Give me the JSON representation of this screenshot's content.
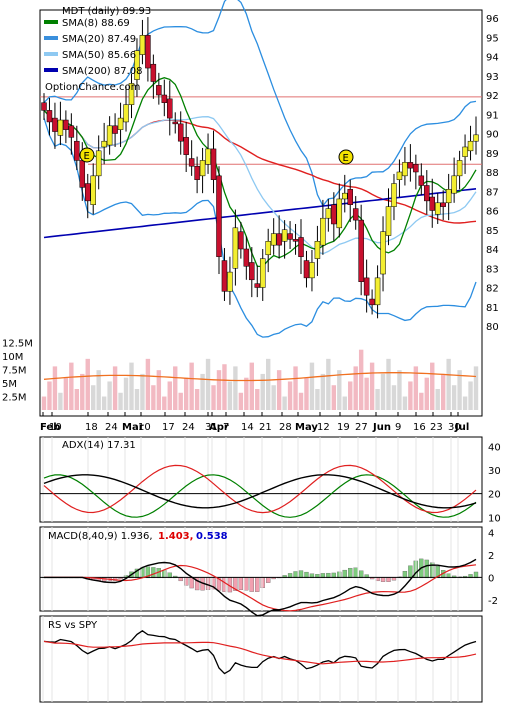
{
  "chart_data": [
    {
      "type": "candlestick",
      "title": "MDT (daily) 89.93",
      "watermark": "OptionChance.com",
      "ylim": [
        79,
        96.5
      ],
      "yticks": [
        80,
        81,
        82,
        83,
        84,
        85,
        86,
        87,
        88,
        89,
        90,
        91,
        92,
        93,
        94,
        95,
        96
      ],
      "xtick_labels": [
        "Feb",
        "10",
        "18",
        "24",
        "Mar",
        "10",
        "17",
        "24",
        "31",
        "Apr",
        "7",
        "14",
        "21",
        "28",
        "May",
        "12",
        "19",
        "27",
        "Jun",
        "9",
        "16",
        "23",
        "30",
        "Jul"
      ],
      "legend": [
        {
          "label": "SMA(8) 88.69",
          "color": "#008000"
        },
        {
          "label": "SMA(20) 87.49",
          "color": "#3a8fdc"
        },
        {
          "label": "SMA(50) 85.66",
          "color": "#8ec9f2"
        },
        {
          "label": "SMA(200) 87.08",
          "color": "#0000b0"
        }
      ],
      "earnings_markers": [
        {
          "date": "Feb 18",
          "label": "E"
        },
        {
          "date": "May 20",
          "label": "E"
        }
      ],
      "resistance_levels": [
        91.9,
        88.4
      ],
      "closes": [
        91.2,
        90.6,
        90.1,
        90.7,
        90.2,
        89.8,
        88.6,
        87.2,
        86.5,
        87.8,
        89.1,
        89.6,
        90.4,
        90.0,
        90.8,
        91.5,
        92.6,
        94.3,
        95.1,
        93.4,
        92.7,
        92.0,
        91.6,
        90.8,
        90.5,
        89.6,
        88.9,
        88.3,
        87.6,
        88.6,
        89.2,
        87.6,
        83.6,
        81.8,
        82.8,
        85.1,
        84.0,
        83.1,
        82.4,
        82.0,
        83.5,
        84.4,
        84.8,
        84.2,
        85.0,
        84.5,
        84.4,
        83.6,
        82.5,
        83.3,
        84.4,
        85.6,
        86.1,
        85.3,
        86.6,
        86.9,
        86.3,
        85.5,
        82.3,
        81.6,
        81.1,
        82.5,
        84.9,
        86.2,
        87.4,
        88.0,
        88.5,
        88.2,
        88.0,
        87.3,
        86.5,
        86.0,
        86.4,
        86.2,
        87.1,
        87.8,
        88.6,
        89.3,
        89.6,
        89.93
      ],
      "volume_yticks": [
        "12.5M",
        "10M",
        "7.5M",
        "5M",
        "2.5M"
      ]
    },
    {
      "type": "line",
      "title": "ADX(14) 17.31",
      "ylim": [
        8,
        44
      ],
      "yticks": [
        10,
        20,
        30,
        40
      ],
      "reference_levels": [
        20
      ]
    },
    {
      "type": "bar",
      "title": "MACD(8,40,9) 1.936,",
      "values_labels": [
        {
          "text": "1.403,",
          "color": "#dd0000"
        },
        {
          "text": "0.538",
          "color": "#0000cc"
        }
      ],
      "ylim": [
        -3,
        4.5
      ],
      "yticks": [
        -2,
        0,
        2,
        4
      ]
    },
    {
      "type": "line",
      "title": "RS vs SPY"
    }
  ]
}
